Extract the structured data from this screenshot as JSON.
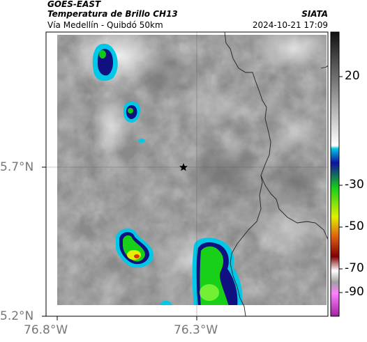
{
  "header": {
    "source": "GOES-EAST",
    "product": "Temperatura de Brillo CH13",
    "region": "Vía Medellín - Quibdó 50km",
    "agency": "SIATA",
    "datetime": "2024-10-21 17:09"
  },
  "axes": {
    "lat_ticks": [
      "5.7°N",
      "5.2°N"
    ],
    "lon_ticks": [
      "76.8°W",
      "76.3°W"
    ]
  },
  "colorbar": {
    "ticks": [
      "20",
      "-30",
      "-50",
      "-70",
      "-90"
    ]
  },
  "map": {
    "marker": "star-icon",
    "colors": {
      "cloud_top_green": "#14c814",
      "cold_yellow": "#f0f000",
      "cyan_edge": "#00c8e6",
      "blue_core": "#101080",
      "background_gray": "#8a8a8a"
    }
  }
}
